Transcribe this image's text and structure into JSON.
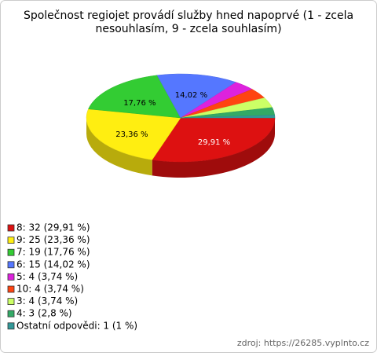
{
  "chart_data": {
    "type": "pie3d",
    "title": [
      "Společnost regiojet provádí služby hned napoprvé (1 - zcela",
      "nesouhlasím, 9 - zcela souhlasím)"
    ],
    "categories": [
      "8",
      "9",
      "7",
      "6",
      "5",
      "10",
      "3",
      "4",
      "Ostatní odpovědi"
    ],
    "values": [
      29.91,
      23.36,
      17.76,
      14.02,
      3.74,
      3.74,
      3.74,
      2.8,
      1
    ],
    "value_labels": [
      "29,91 %",
      "23,36 %",
      "17,76 %",
      "14,02 %",
      null,
      null,
      null,
      null,
      null
    ],
    "legend": [
      "8: 32 (29,91 %)",
      "9: 25 (23,36 %)",
      "7: 19 (17,76 %)",
      "6: 15 (14,02 %)",
      "5: 4 (3,74 %)",
      "10: 4 (3,74 %)",
      "3: 4 (3,74 %)",
      "4: 3 (2,8 %)",
      "Ostatní odpovědi: 1 (1 %)"
    ],
    "colors": [
      "#dd1111",
      "#ffee11",
      "#33cc33",
      "#5577ff",
      "#dd22dd",
      "#ff4411",
      "#ccff66",
      "#33aa66",
      "#339999"
    ],
    "source": "zdroj: https://26285.vyplnto.cz"
  }
}
